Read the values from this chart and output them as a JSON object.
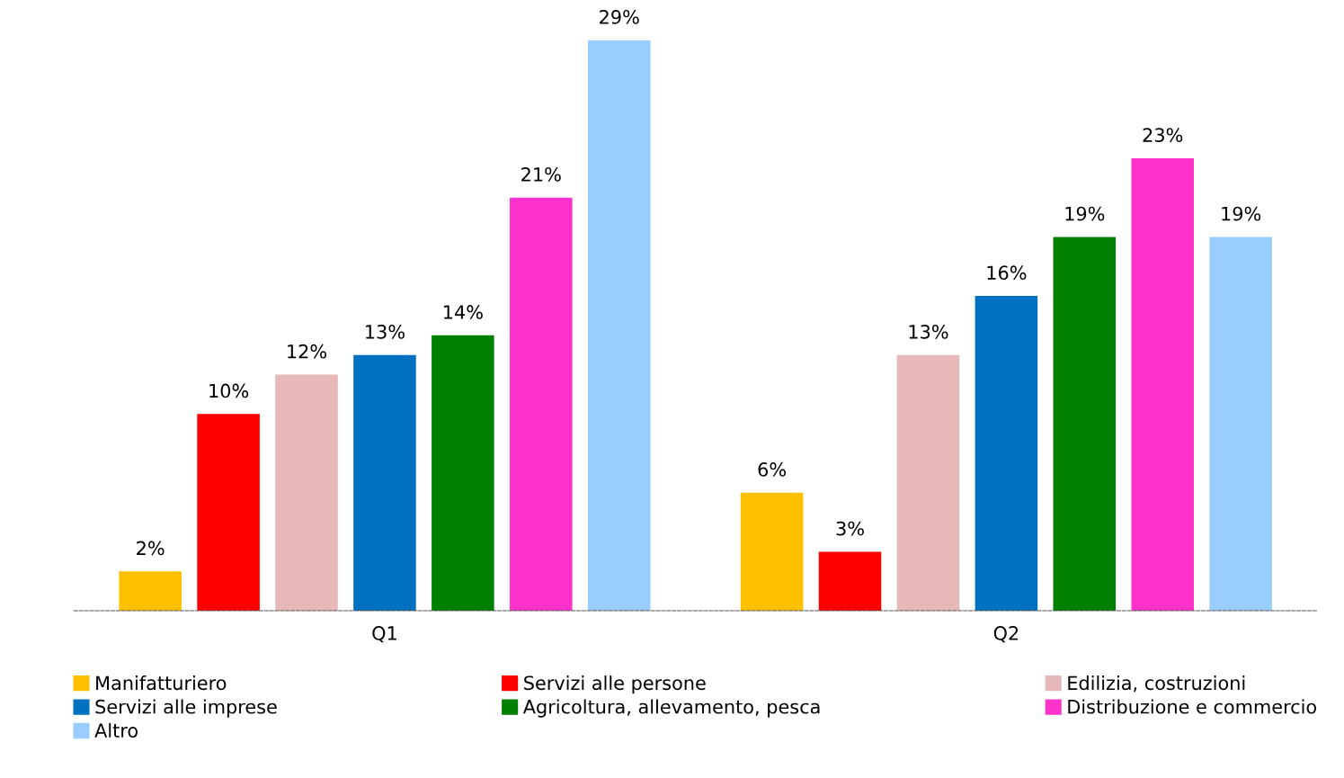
{
  "chart_data": {
    "type": "bar",
    "categories": [
      "Q1",
      "Q2"
    ],
    "series": [
      {
        "name": "Manifatturiero",
        "color": "#ffc000",
        "values": [
          2,
          6
        ],
        "value_labels": [
          "2%",
          "6%"
        ]
      },
      {
        "name": "Servizi alle persone",
        "color": "#ff0000",
        "values": [
          10,
          3
        ],
        "value_labels": [
          "10%",
          "3%"
        ]
      },
      {
        "name": "Edilizia, costruzioni",
        "color": "#e6b8b7",
        "values": [
          12,
          13
        ],
        "value_labels": [
          "12%",
          "13%"
        ]
      },
      {
        "name": "Servizi alle imprese",
        "color": "#0070c0",
        "values": [
          13,
          16
        ],
        "value_labels": [
          "13%",
          "16%"
        ]
      },
      {
        "name": "Agricoltura, allevamento, pesca",
        "color": "#008000",
        "values": [
          14,
          19
        ],
        "value_labels": [
          "14%",
          "19%"
        ]
      },
      {
        "name": "Distribuzione e commercio",
        "color": "#ff33cc",
        "values": [
          21,
          23
        ],
        "value_labels": [
          "21%",
          "23%"
        ]
      },
      {
        "name": "Altro",
        "color": "#99ccff",
        "values": [
          29,
          19
        ],
        "value_labels": [
          "29%",
          "19%"
        ]
      }
    ],
    "legend": "bottom",
    "tick_labels": "x"
  }
}
